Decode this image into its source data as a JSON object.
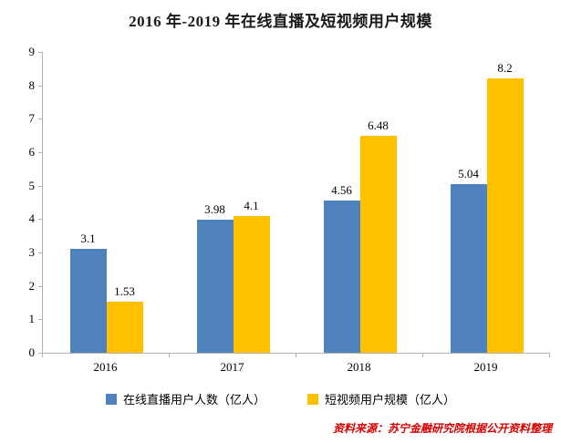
{
  "title": "2016 年-2019 年在线直播及短视频用户规模",
  "source_note": "资料来源：苏宁金融研究院根据公开资料整理",
  "colors": {
    "title": "#1a1a1a",
    "axis": "#b3b3b3",
    "text": "#000000",
    "source": "#d40000",
    "series1": "#4f81bd",
    "series2": "#ffc000"
  },
  "chart_data": {
    "type": "bar",
    "categories": [
      "2016",
      "2017",
      "2018",
      "2019"
    ],
    "series": [
      {
        "name": "在线直播用户人数（亿人）",
        "color": "#4f81bd",
        "values": [
          3.1,
          3.98,
          4.56,
          5.04
        ]
      },
      {
        "name": "短视频用户规模（亿人）",
        "color": "#ffc000",
        "values": [
          1.53,
          4.1,
          6.48,
          8.2
        ]
      }
    ],
    "title": "2016 年-2019 年在线直播及短视频用户规模",
    "xlabel": "",
    "ylabel": "",
    "ylim": [
      0,
      9
    ],
    "y_ticks": [
      0,
      1,
      2,
      3,
      4,
      5,
      6,
      7,
      8,
      9
    ],
    "grid": false,
    "legend_position": "bottom",
    "value_labels": true
  }
}
